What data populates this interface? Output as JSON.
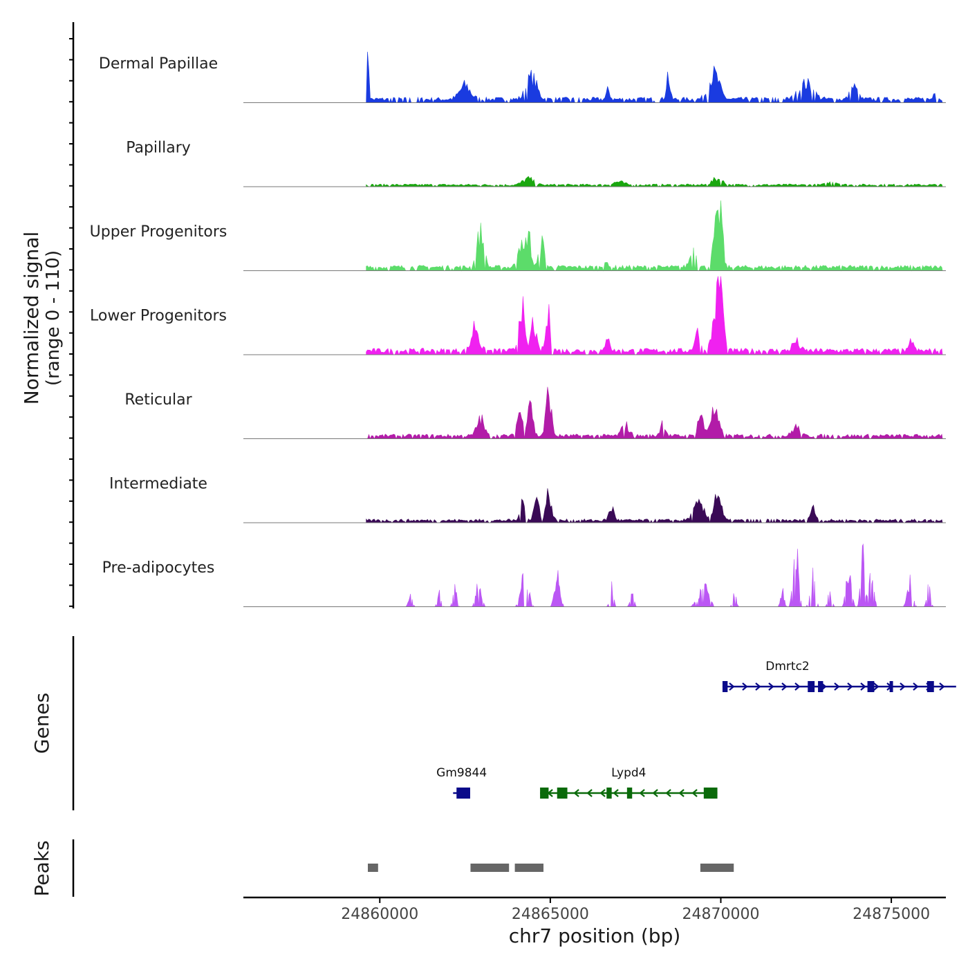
{
  "chart_data": {
    "type": "area",
    "title": "",
    "chromosome": "chr7",
    "xlabel": "chr7 position (bp)",
    "xlim": [
      24856000,
      24876600
    ],
    "x_ticks": [
      24860000,
      24865000,
      24870000,
      24875000
    ],
    "x_tick_labels": [
      "24860000",
      "24865000",
      "24870000",
      "24875000"
    ],
    "coverage_ylabel": "Normalized signal",
    "coverage_ylabel_range": "(range 0 - 110)",
    "ylim": [
      0,
      110
    ],
    "data_start": 24859600,
    "data_end": 24876500,
    "step": 100,
    "tracks": [
      {
        "name": "Dermal Papillae",
        "color": "#1a3be0",
        "peaks": [
          [
            24859660,
            80,
            50
          ],
          [
            24862500,
            22,
            300
          ],
          [
            24864450,
            35,
            300
          ],
          [
            24866700,
            15,
            100
          ],
          [
            24868450,
            40,
            100
          ],
          [
            24869800,
            40,
            300
          ],
          [
            24872500,
            25,
            400
          ],
          [
            24873900,
            20,
            200
          ],
          [
            24876300,
            18,
            100
          ]
        ],
        "base": 6,
        "gaps": [
          [
            24860300,
            24861200
          ],
          [
            24865600,
            24866000
          ],
          [
            24871100,
            24871800
          ]
        ]
      },
      {
        "name": "Papillary",
        "color": "#1aa70f",
        "peaks": [
          [
            24864350,
            10,
            300
          ],
          [
            24869900,
            10,
            300
          ],
          [
            24867000,
            5,
            300
          ],
          [
            24873300,
            5,
            300
          ]
        ],
        "base": 3,
        "gaps": []
      },
      {
        "name": "Upper Progenitors",
        "color": "#5cdc6a",
        "peaks": [
          [
            24862950,
            55,
            200
          ],
          [
            24864100,
            42,
            150
          ],
          [
            24864350,
            55,
            150
          ],
          [
            24864750,
            40,
            150
          ],
          [
            24866600,
            12,
            100
          ],
          [
            24869200,
            28,
            200
          ],
          [
            24869850,
            60,
            150
          ],
          [
            24870000,
            85,
            120
          ]
        ],
        "base": 6,
        "gaps": []
      },
      {
        "name": "Lower Progenitors",
        "color": "#f021f0",
        "peaks": [
          [
            24862800,
            42,
            200
          ],
          [
            24864150,
            80,
            150
          ],
          [
            24864500,
            45,
            150
          ],
          [
            24864950,
            55,
            150
          ],
          [
            24866700,
            30,
            100
          ],
          [
            24869300,
            30,
            150
          ],
          [
            24869850,
            60,
            200
          ],
          [
            24870000,
            100,
            150
          ],
          [
            24872200,
            15,
            200
          ],
          [
            24875600,
            20,
            100
          ]
        ],
        "base": 7,
        "gaps": []
      },
      {
        "name": "Reticular",
        "color": "#b21ca8",
        "peaks": [
          [
            24862950,
            28,
            200
          ],
          [
            24864100,
            40,
            150
          ],
          [
            24864400,
            65,
            150
          ],
          [
            24864950,
            70,
            150
          ],
          [
            24867200,
            18,
            200
          ],
          [
            24868300,
            22,
            150
          ],
          [
            24869400,
            35,
            150
          ],
          [
            24869800,
            38,
            250
          ],
          [
            24872200,
            15,
            200
          ]
        ],
        "base": 5,
        "gaps": []
      },
      {
        "name": "Intermediate",
        "color": "#3a0a56",
        "peaks": [
          [
            24864200,
            28,
            150
          ],
          [
            24864600,
            35,
            150
          ],
          [
            24864950,
            45,
            150
          ],
          [
            24866800,
            20,
            150
          ],
          [
            24869350,
            25,
            300
          ],
          [
            24869900,
            45,
            200
          ],
          [
            24872700,
            20,
            150
          ]
        ],
        "base": 4,
        "gaps": [
          [
            24870700,
            24871700
          ]
        ]
      },
      {
        "name": "Pre-adipocytes",
        "color": "#bb57f4",
        "peaks": [
          [
            24860900,
            20,
            100
          ],
          [
            24861750,
            20,
            100
          ],
          [
            24862200,
            30,
            100
          ],
          [
            24862900,
            35,
            150
          ],
          [
            24864250,
            55,
            200
          ],
          [
            24865200,
            50,
            150
          ],
          [
            24866800,
            35,
            100
          ],
          [
            24867400,
            25,
            100
          ],
          [
            24869500,
            30,
            300
          ],
          [
            24870400,
            20,
            100
          ],
          [
            24871800,
            25,
            100
          ],
          [
            24872200,
            85,
            150
          ],
          [
            24872700,
            50,
            150
          ],
          [
            24873200,
            25,
            100
          ],
          [
            24873750,
            50,
            150
          ],
          [
            24874150,
            100,
            100
          ],
          [
            24874400,
            45,
            150
          ],
          [
            24875550,
            40,
            150
          ],
          [
            24876100,
            30,
            100
          ]
        ],
        "base": 0,
        "sparse": true,
        "gaps": []
      }
    ],
    "genes": [
      {
        "name": "Dmrtc2",
        "strand": "+",
        "start": 24870050,
        "end": 24876900,
        "row": 1,
        "color": "#0a0a8a",
        "exons": [
          [
            24870050,
            24870200
          ],
          [
            24872550,
            24872750
          ],
          [
            24872850,
            24873000
          ],
          [
            24874300,
            24874500
          ],
          [
            24874950,
            24875050
          ],
          [
            24876050,
            24876250
          ]
        ]
      },
      {
        "name": "Gm9844",
        "strand": "+",
        "start": 24862150,
        "end": 24862650,
        "row": 2,
        "color": "#0a0a8a",
        "exons": [
          [
            24862250,
            24862650
          ]
        ]
      },
      {
        "name": "Lypd4",
        "strand": "-",
        "start": 24864700,
        "end": 24869900,
        "row": 2,
        "color": "#0a6a0a",
        "exons": [
          [
            24864700,
            24864950
          ],
          [
            24865200,
            24865500
          ],
          [
            24866650,
            24866800
          ],
          [
            24867250,
            24867400
          ],
          [
            24869500,
            24869900
          ]
        ]
      }
    ],
    "peaks_track": [
      [
        24859650,
        24859950
      ],
      [
        24862660,
        24863790
      ],
      [
        24863960,
        24864800
      ],
      [
        24869400,
        24870380
      ]
    ],
    "genes_label": "Genes",
    "peaks_label": "Peaks"
  }
}
